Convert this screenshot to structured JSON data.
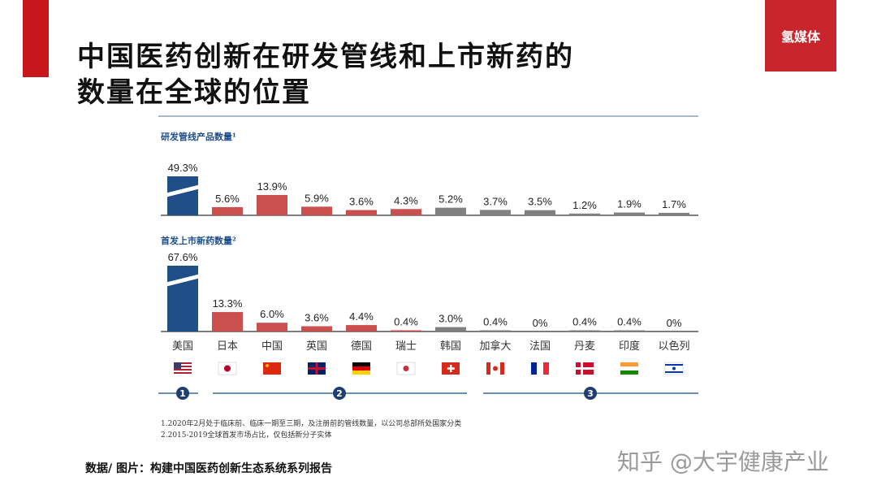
{
  "title_line1": "中国医药创新在研发管线和上市新药的",
  "title_line2": "数量在全球的位置",
  "logo": "氢媒体",
  "source": "数据/ 图片：构建中国医药创新生态系统系列报告",
  "watermark": "知乎 @大宇健康产业",
  "footnotes": [
    "1.2020年2月处于临床前、临床一期至三期，及注册前的管线数量，以公司总部所处国家分类",
    "2.2015-2019全球首发市场占比，仅包括新分子实体"
  ],
  "groups": [
    "1",
    "2",
    "3"
  ],
  "chart_data": [
    {
      "type": "bar",
      "title": "研发管线产品数量¹",
      "categories": [
        "美国",
        "日本",
        "中国",
        "英国",
        "德国",
        "瑞士",
        "韩国",
        "加拿大",
        "法国",
        "丹麦",
        "印度",
        "以色列"
      ],
      "values": [
        49.3,
        5.6,
        13.9,
        5.9,
        3.6,
        4.3,
        5.2,
        3.7,
        3.5,
        1.2,
        1.9,
        1.7
      ],
      "labels": [
        "49.3%",
        "5.6%",
        "13.9%",
        "5.9%",
        "3.6%",
        "4.3%",
        "5.2%",
        "3.7%",
        "3.5%",
        "1.2%",
        "1.9%",
        "1.7%"
      ],
      "broken_axis_first": true
    },
    {
      "type": "bar",
      "title": "首发上市新药数量²",
      "categories": [
        "美国",
        "日本",
        "中国",
        "英国",
        "德国",
        "瑞士",
        "韩国",
        "加拿大",
        "法国",
        "丹麦",
        "印度",
        "以色列"
      ],
      "values": [
        67.6,
        13.3,
        6.0,
        3.6,
        4.4,
        0.4,
        3.0,
        0.4,
        0,
        0.4,
        0.4,
        0
      ],
      "labels": [
        "67.6%",
        "13.3%",
        "6.0%",
        "3.6%",
        "4.4%",
        "0.4%",
        "3.0%",
        "0.4%",
        "0%",
        "0.4%",
        "0.4%",
        "0%"
      ],
      "broken_axis_first": true
    }
  ],
  "colors": [
    "#1f4e89",
    "#c9504f",
    "#c9504f",
    "#c9504f",
    "#c9504f",
    "#c9504f",
    "#808080",
    "#808080",
    "#808080",
    "#808080",
    "#808080",
    "#808080"
  ],
  "flags": [
    "us-flag",
    "japan-flag",
    "china-flag",
    "uk-flag",
    "germany-flag",
    "korea-flag",
    "switzerland-flag",
    "canada-flag",
    "france-flag",
    "denmark-flag",
    "india-flag",
    "israel-flag"
  ]
}
